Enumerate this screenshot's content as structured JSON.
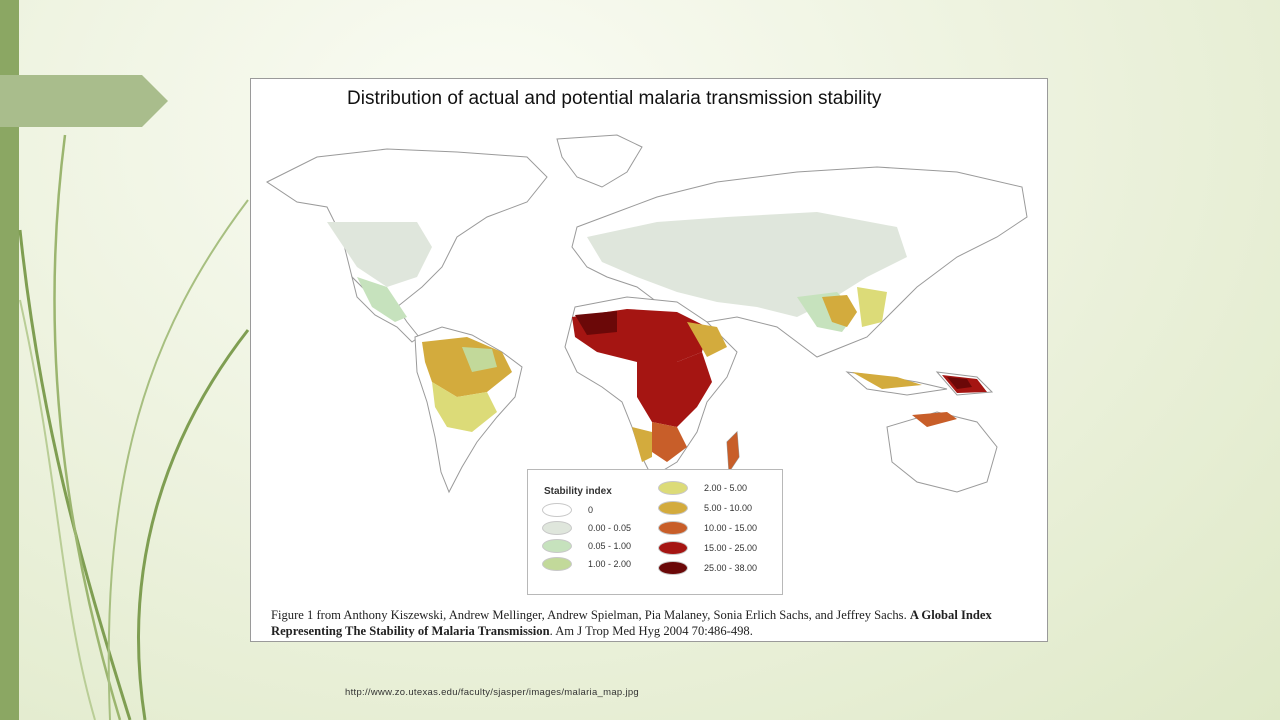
{
  "slide": {
    "source_url": "http://www.zo.utexas.edu/faculty/sjasper/images/malaria_map.jpg"
  },
  "figure": {
    "title": "Distribution of actual and potential malaria transmission stability",
    "caption_plain": "Figure 1 from Anthony Kiszewski, Andrew Mellinger, Andrew Spielman, Pia Malaney, Sonia Erlich Sachs, and Jeffrey Sachs.",
    "caption_bold": "A Global Index Representing The Stability of Malaria Transmission",
    "caption_tail": ". Am J Trop Med Hyg 2004 70:486-498."
  },
  "legend": {
    "title": "Stability index",
    "items": [
      {
        "label": "0",
        "color": "#ffffff"
      },
      {
        "label": "0.00 - 0.05",
        "color": "#dfe6dc"
      },
      {
        "label": "0.05 - 1.00",
        "color": "#c6e2bd"
      },
      {
        "label": "1.00 - 2.00",
        "color": "#c2d99a"
      },
      {
        "label": "2.00 - 5.00",
        "color": "#dcdb78"
      },
      {
        "label": "5.00 - 10.00",
        "color": "#d3ab3d"
      },
      {
        "label": "10.00 - 15.00",
        "color": "#c85e29"
      },
      {
        "label": "15.00 - 25.00",
        "color": "#a51512"
      },
      {
        "label": "25.00 - 38.00",
        "color": "#6b0808"
      }
    ]
  },
  "colors": {
    "slide_accent": "#8ba763",
    "tab_arrow": "#a9bd8c",
    "land_outline": "#9a9a9a"
  }
}
